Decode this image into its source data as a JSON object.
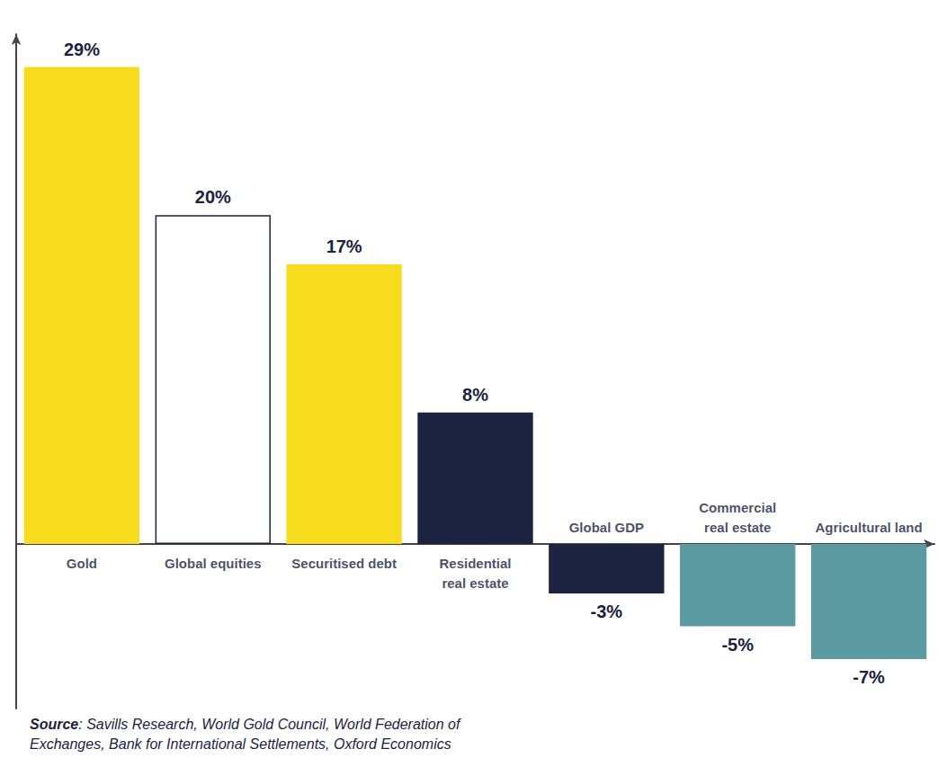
{
  "chart_data": {
    "type": "bar",
    "categories": [
      "Gold",
      "Global equities",
      "Securitised debt",
      "Residential real estate",
      "Global GDP",
      "Commercial real estate",
      "Agricultural land"
    ],
    "values": [
      29,
      20,
      17,
      8,
      -3,
      -5,
      -7
    ],
    "value_labels": [
      "29%",
      "20%",
      "17%",
      "8%",
      "-3%",
      "-5%",
      "-7%"
    ],
    "colors": [
      "#f7dc1e",
      "#ffffff",
      "#f7dc1e",
      "#1b2340",
      "#1b2340",
      "#5b9aa0",
      "#5b9aa0"
    ],
    "ylim": [
      -10,
      31
    ],
    "data_labels": true,
    "tick_labels": false,
    "grid": false,
    "source": "Source: Savills Research, World Gold Council, World Federation of Exchanges, Bank for International Settlements, Oxford Economics"
  }
}
